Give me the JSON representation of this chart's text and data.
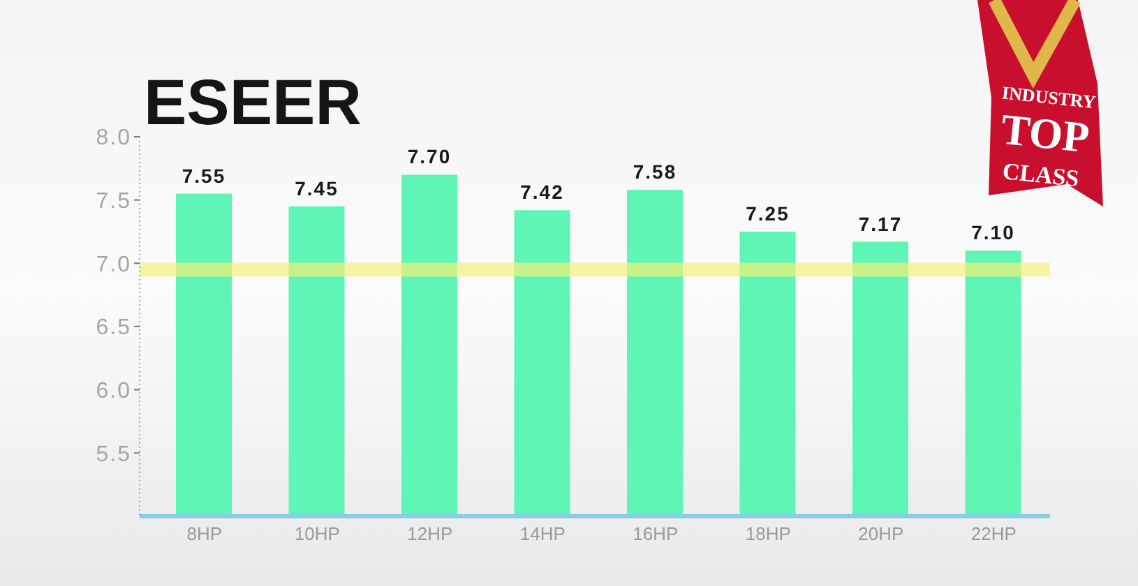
{
  "chart_data": {
    "type": "bar",
    "title": "ESEER",
    "categories": [
      "8HP",
      "10HP",
      "12HP",
      "14HP",
      "16HP",
      "18HP",
      "20HP",
      "22HP"
    ],
    "values": [
      7.55,
      7.45,
      7.7,
      7.42,
      7.58,
      7.25,
      7.17,
      7.1
    ],
    "value_labels": [
      "7.55",
      "7.45",
      "7.70",
      "7.42",
      "7.58",
      "7.25",
      "7.17",
      "7.10"
    ],
    "color": "#5ef5b5",
    "ylim": [
      5.0,
      8.0
    ],
    "yticks": [
      5.5,
      {
        "value": 6.0,
        "label": "6.0"
      },
      6.5,
      {
        "value": 7.0,
        "label": "7.0"
      },
      7.5,
      {
        "value": 8.0,
        "label": "8.0"
      }
    ],
    "ref_lines": [
      {
        "axis": "y",
        "value": 6.95,
        "color": "#f3f07c"
      }
    ],
    "annotations": [
      "INDUSTRY",
      "TOP",
      "CLASS"
    ]
  }
}
